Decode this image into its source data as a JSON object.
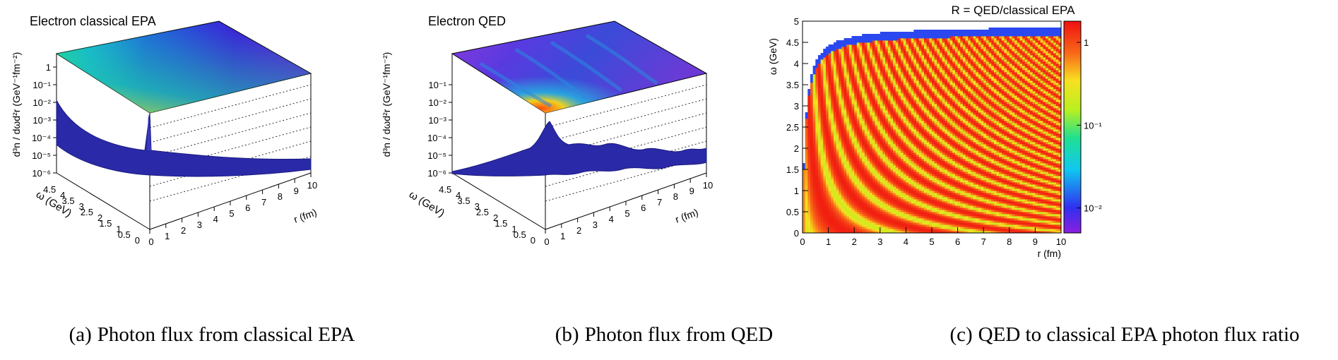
{
  "panels": [
    {
      "id": "a",
      "caption_label": "(a)",
      "caption_text": "Photon flux from classical EPA",
      "chart_data": {
        "type": "surface3d",
        "title": "Electron classical EPA",
        "zlabel": "d³n / dωd²r (GeV⁻¹fm⁻²)",
        "ylabel": "ω (GeV)",
        "xlabel": "r (fm)",
        "x_ticks": [
          "0",
          "1",
          "2",
          "3",
          "4",
          "5",
          "6",
          "7",
          "8",
          "9",
          "10"
        ],
        "y_ticks": [
          "0",
          "0.5",
          "1",
          "1.5",
          "2",
          "2.5",
          "3",
          "3.5",
          "4",
          "4.5"
        ],
        "z_ticks": [
          "10⁻⁶",
          "10⁻⁵",
          "10⁻⁴",
          "10⁻³",
          "10⁻²",
          "10⁻¹",
          "1"
        ],
        "z_scale": "log"
      }
    },
    {
      "id": "b",
      "caption_label": "(b)",
      "caption_text": "Photon flux from QED",
      "chart_data": {
        "type": "surface3d",
        "title": "Electron QED",
        "zlabel": "d³n / dωd²r (GeV⁻¹fm⁻²)",
        "ylabel": "ω (GeV)",
        "xlabel": "r (fm)",
        "x_ticks": [
          "0",
          "1",
          "2",
          "3",
          "4",
          "5",
          "6",
          "7",
          "8",
          "9",
          "10"
        ],
        "y_ticks": [
          "0",
          "0.5",
          "1",
          "1.5",
          "2",
          "2.5",
          "3",
          "3.5",
          "4",
          "4.5"
        ],
        "z_ticks": [
          "10⁻⁶",
          "10⁻⁵",
          "10⁻⁴",
          "10⁻³",
          "10⁻²",
          "10⁻¹"
        ],
        "z_scale": "log"
      }
    },
    {
      "id": "c",
      "caption_label": "(c)",
      "caption_text": "QED to classical EPA photon flux ratio",
      "chart_data": {
        "type": "heatmap",
        "title": "R = QED/classical EPA",
        "xlabel": "r (fm)",
        "ylabel": "ω (GeV)",
        "x_range": [
          0,
          10
        ],
        "y_range": [
          0,
          5
        ],
        "x_ticks": [
          "0",
          "1",
          "2",
          "3",
          "4",
          "5",
          "6",
          "7",
          "8",
          "9",
          "10"
        ],
        "y_ticks": [
          "0",
          "0.5",
          "1",
          "1.5",
          "2",
          "2.5",
          "3",
          "3.5",
          "4",
          "4.5",
          "5"
        ],
        "colorbar_ticks": [
          "1",
          "10⁻¹",
          "10⁻²"
        ],
        "colorbar_values": [
          1,
          0.1,
          0.01
        ],
        "color_range": [
          0.005,
          1.8
        ],
        "color_scale": "log"
      }
    }
  ]
}
